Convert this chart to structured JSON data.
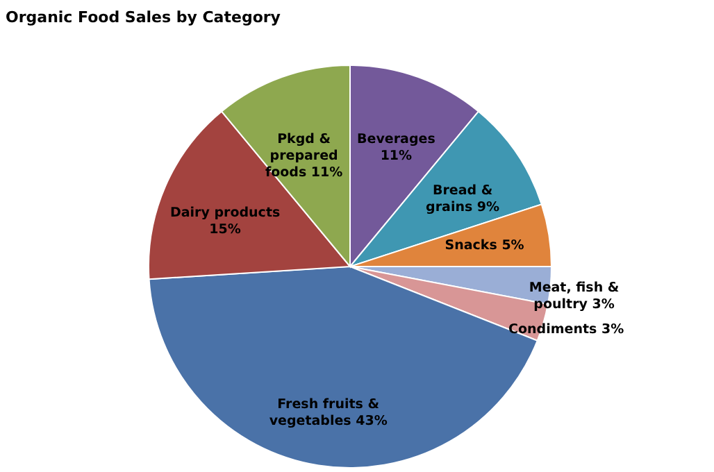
{
  "chart_data": {
    "type": "pie",
    "title": "Organic Food Sales by Category",
    "categories": [
      "Beverages",
      "Bread & grains",
      "Snacks",
      "Meat, fish & poultry",
      "Condiments",
      "Fresh fruits & vegetables",
      "Dairy products",
      "Pkgd & prepared foods"
    ],
    "values": [
      11,
      9,
      5,
      3,
      3,
      43,
      15,
      11
    ],
    "value_labels": [
      "11%",
      "9%",
      "5%",
      "3%",
      "3%",
      "43%",
      "15%",
      "11%"
    ],
    "colors": [
      "#73599a",
      "#3f97b2",
      "#e0843c",
      "#9aaed6",
      "#d89696",
      "#4a72a8",
      "#a3433f",
      "#8ea84f"
    ],
    "legend": false
  }
}
